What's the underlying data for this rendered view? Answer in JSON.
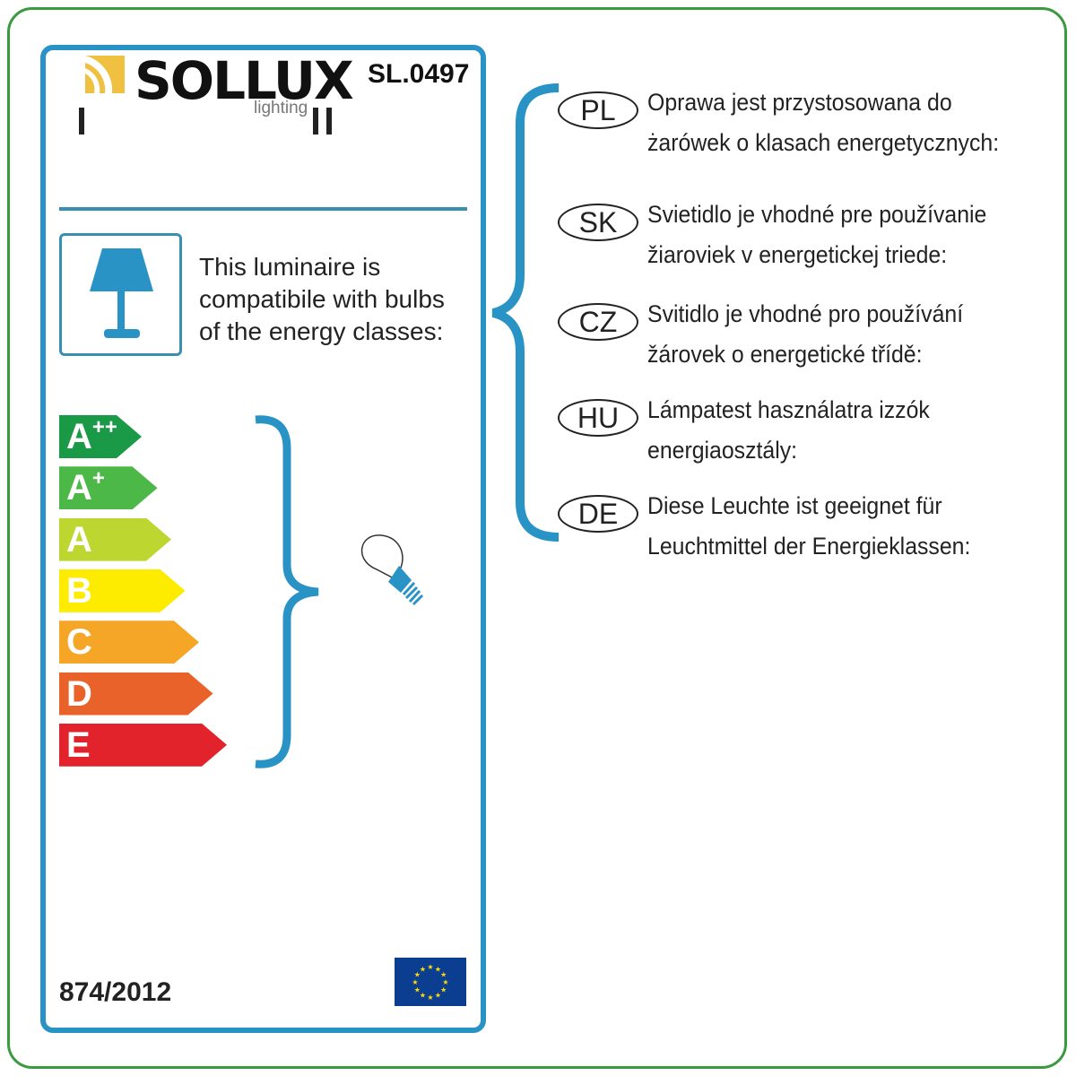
{
  "brand": {
    "name": "SOLLUX",
    "sub": "lighting",
    "logo_color": "#f0c040"
  },
  "model": "SL.0497",
  "marks": [
    "I",
    "II"
  ],
  "compat_text": [
    "This luminaire is",
    "compatibile with bulbs",
    "of the energy classes:"
  ],
  "energy_classes": [
    {
      "letter": "A",
      "sup": "++",
      "color": "#1a9a46"
    },
    {
      "letter": "A",
      "sup": "+",
      "color": "#4cb848"
    },
    {
      "letter": "A",
      "sup": "",
      "color": "#bed630"
    },
    {
      "letter": "B",
      "sup": "",
      "color": "#fdeb00"
    },
    {
      "letter": "C",
      "sup": "",
      "color": "#f5a626"
    },
    {
      "letter": "D",
      "sup": "",
      "color": "#e9622a"
    },
    {
      "letter": "E",
      "sup": "",
      "color": "#e2232b"
    }
  ],
  "regulation": "874/2012",
  "accent": "#2a93c6",
  "languages": [
    {
      "code": "PL",
      "lines": [
        "Oprawa jest przystosowana do",
        "żarówek o klasach energetycznych:"
      ]
    },
    {
      "code": "SK",
      "lines": [
        "Svietidlo je vhodné pre používanie",
        "žiaroviek v energetickej triede:"
      ]
    },
    {
      "code": "CZ",
      "lines": [
        "Svitidlo je vhodné pro používání",
        "žárovek o energetické třídě:"
      ]
    },
    {
      "code": "HU",
      "lines": [
        "Lámpatest használatra izzók",
        "energiaosztály:"
      ]
    },
    {
      "code": "DE",
      "lines": [
        "Diese Leuchte ist geeignet für",
        "Leuchtmittel der Energieklassen:"
      ]
    }
  ]
}
